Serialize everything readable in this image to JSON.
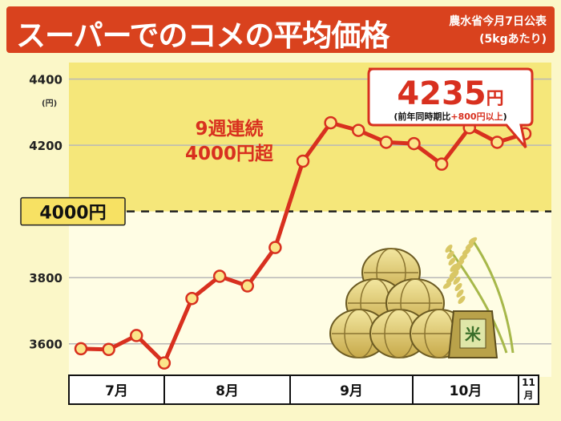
{
  "title": "スーパーでのコメの平均価格",
  "source_line1": "農水省今月7日公表",
  "source_line2": "(5kgあたり)",
  "colors": {
    "line": "#d8301f",
    "point_fill": "#fbe58a",
    "title_bg": "#d9421e",
    "upper_band": "#f5e77a",
    "lower_band": "#fffde4",
    "axis_box": "#ffffff"
  },
  "callout": {
    "value": "4235",
    "unit": "円",
    "note_prefix": "(前年同時期比",
    "note_highlight": "+800円以上",
    "note_suffix": ")"
  },
  "annotation_line1": "9週連続",
  "annotation_line2": "4000円超",
  "reference_label": "4000円",
  "illustration": [
    "rice-bales-icon",
    "rice-bag-icon",
    "rice-plant-icon"
  ],
  "rice_bag_label": "米",
  "chart_data": {
    "type": "line",
    "y_unit": "(円)",
    "ylim": [
      3500,
      4450
    ],
    "y_ticks": [
      "3600",
      "3800",
      "4200",
      "4400"
    ],
    "reference_line": 4000,
    "months": [
      "7月",
      "8月",
      "9月",
      "10月",
      "11月"
    ],
    "values": [
      3585,
      3583,
      3625,
      3542,
      3737,
      3804,
      3775,
      3891,
      4152,
      4268,
      4245,
      4209,
      4205,
      4143,
      4253,
      4209,
      4235
    ],
    "grid": true
  }
}
